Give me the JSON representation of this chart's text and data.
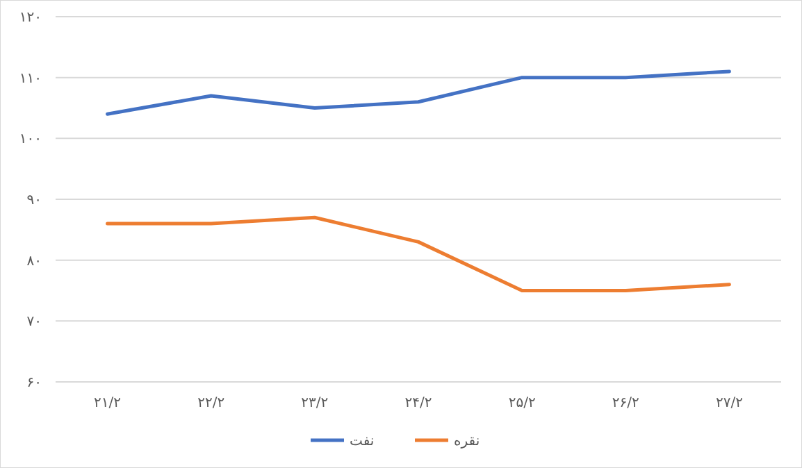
{
  "chart_data": {
    "type": "line",
    "categories": [
      "۲۱/۲",
      "۲۲/۲",
      "۲۳/۲",
      "۲۴/۲",
      "۲۵/۲",
      "۲۶/۲",
      "۲۷/۲"
    ],
    "series": [
      {
        "name": "نفت",
        "color": "#4472c4",
        "values": [
          104,
          107,
          105,
          106,
          110,
          110,
          111
        ]
      },
      {
        "name": "نقره",
        "color": "#ed7d31",
        "values": [
          86,
          86,
          87,
          83,
          75,
          75,
          76
        ]
      }
    ],
    "ylim": [
      60,
      120
    ],
    "yticks": [
      {
        "value": 60,
        "label": "۶۰"
      },
      {
        "value": 70,
        "label": "۷۰"
      },
      {
        "value": 80,
        "label": "۸۰"
      },
      {
        "value": 90,
        "label": "۹۰"
      },
      {
        "value": 100,
        "label": "۱۰۰"
      },
      {
        "value": 110,
        "label": "۱۱۰"
      },
      {
        "value": 120,
        "label": "۱۲۰"
      }
    ],
    "grid": "y",
    "legend": "bottom",
    "marker": "none",
    "line_style": "solid"
  }
}
